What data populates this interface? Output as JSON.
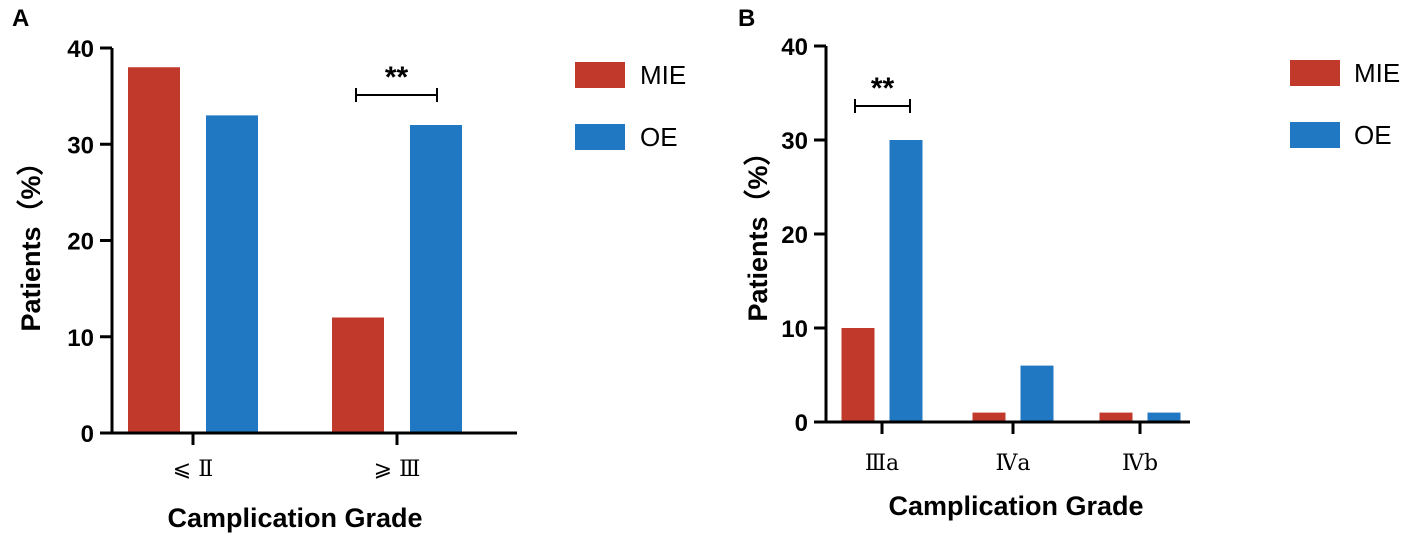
{
  "colors": {
    "mie": "#c0392b",
    "oe": "#1f78c1",
    "axis": "#000000"
  },
  "chart_data": [
    {
      "panel": "A",
      "type": "bar",
      "categories": [
        "⩽ Ⅱ",
        "⩾ Ⅲ"
      ],
      "series": [
        {
          "name": "MIE",
          "values": [
            38,
            12
          ]
        },
        {
          "name": "OE",
          "values": [
            33,
            32
          ]
        }
      ],
      "ylabel": "Patients（%）",
      "xlabel": "Camplication Grade",
      "ylim": [
        0,
        40
      ],
      "yticks": [
        0,
        10,
        20,
        30,
        40
      ],
      "legend": "right",
      "significance": [
        {
          "category": "⩾ Ⅲ",
          "label": "**"
        }
      ]
    },
    {
      "panel": "B",
      "type": "bar",
      "categories": [
        "Ⅲa",
        "Ⅳa",
        "Ⅳb"
      ],
      "series": [
        {
          "name": "MIE",
          "values": [
            10,
            1,
            1
          ]
        },
        {
          "name": "OE",
          "values": [
            30,
            6,
            1
          ]
        }
      ],
      "ylabel": "Patients（%）",
      "xlabel": "Camplication Grade",
      "ylim": [
        0,
        40
      ],
      "yticks": [
        0,
        10,
        20,
        30,
        40
      ],
      "legend": "right",
      "significance": [
        {
          "category": "Ⅲa",
          "label": "**"
        }
      ]
    }
  ]
}
